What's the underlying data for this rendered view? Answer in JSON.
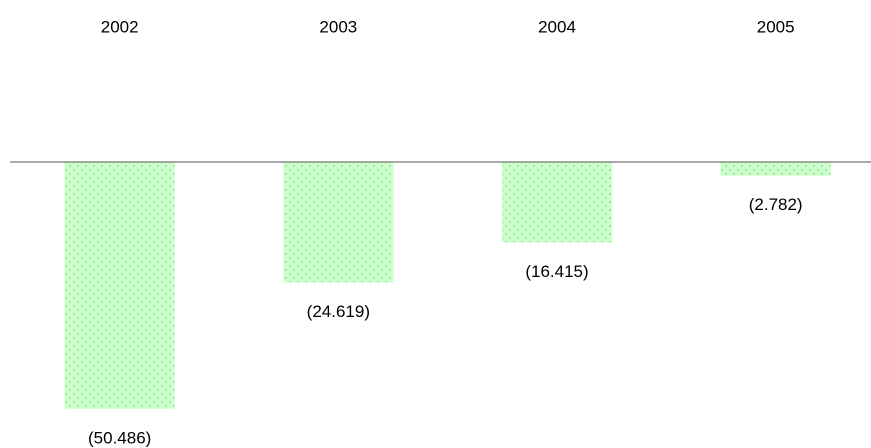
{
  "chart_data": {
    "type": "bar",
    "categories": [
      "2002",
      "2003",
      "2004",
      "2005"
    ],
    "values": [
      -50.486,
      -24.619,
      -16.415,
      -2.782
    ],
    "value_labels": [
      "(50.486)",
      "(24.619)",
      "(16.415)",
      "(2.782)"
    ],
    "color": "#ccffcc",
    "pattern_color": "#55cc55"
  }
}
